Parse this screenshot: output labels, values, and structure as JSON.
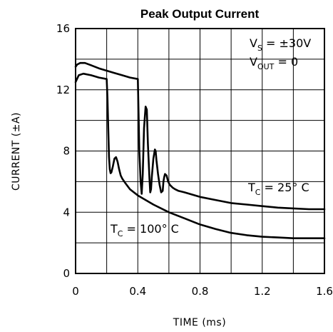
{
  "chart_data": {
    "type": "line",
    "title": "Peak Output Current",
    "xlabel": "TIME (ms)",
    "ylabel": "CURRENT (±A)",
    "xlim": [
      0,
      1.6
    ],
    "ylim": [
      0,
      16
    ],
    "x_ticks": [
      "0",
      "0.4",
      "0.8",
      "1.2",
      "1.6"
    ],
    "y_ticks": [
      "0",
      "4",
      "8",
      "12",
      "16"
    ],
    "grid": true,
    "annotations": {
      "vs": {
        "main": "V",
        "sub": "S",
        "rest": " = ±30V"
      },
      "vout": {
        "main": "V",
        "sub": "OUT",
        "rest": " = 0"
      },
      "tc25": {
        "main": "T",
        "sub": "C",
        "rest": " = 25° C"
      },
      "tc100": {
        "main": "T",
        "sub": "C",
        "rest": " = 100° C"
      }
    },
    "series": [
      {
        "x": [
          0,
          0.01,
          0.03,
          0.06,
          0.1,
          0.15,
          0.2,
          0.25,
          0.3,
          0.35,
          0.4,
          0.405,
          0.41,
          0.418,
          0.425,
          0.432,
          0.44,
          0.45,
          0.458,
          0.465,
          0.475,
          0.48,
          0.485,
          0.49,
          0.5,
          0.51,
          0.515,
          0.52,
          0.53,
          0.54,
          0.55,
          0.56,
          0.565,
          0.57,
          0.575,
          0.585,
          0.595,
          0.605,
          0.615,
          0.625,
          0.64,
          0.66,
          0.7,
          0.8,
          0.9,
          1.0,
          1.1,
          1.2,
          1.3,
          1.4,
          1.5,
          1.6
        ],
        "y": [
          13.5,
          13.65,
          13.75,
          13.75,
          13.6,
          13.4,
          13.25,
          13.1,
          12.95,
          12.8,
          12.7,
          10.5,
          8.0,
          6.0,
          5.2,
          6.5,
          9.5,
          10.9,
          10.7,
          8.5,
          6.2,
          5.3,
          5.5,
          6.3,
          7.5,
          8.1,
          8.0,
          7.4,
          6.5,
          5.8,
          5.3,
          5.4,
          6.0,
          6.3,
          6.5,
          6.4,
          6.0,
          5.8,
          5.7,
          5.6,
          5.5,
          5.4,
          5.3,
          5.0,
          4.8,
          4.6,
          4.5,
          4.4,
          4.3,
          4.25,
          4.2,
          4.2
        ]
      },
      {
        "x": [
          0,
          0.02,
          0.05,
          0.1,
          0.15,
          0.2,
          0.205,
          0.21,
          0.215,
          0.22,
          0.225,
          0.23,
          0.24,
          0.25,
          0.26,
          0.27,
          0.28,
          0.29,
          0.3,
          0.32,
          0.35,
          0.4,
          0.45,
          0.5,
          0.6,
          0.7,
          0.8,
          0.9,
          1.0,
          1.1,
          1.2,
          1.3,
          1.4,
          1.5,
          1.6
        ],
        "y": [
          12.5,
          12.95,
          13.05,
          12.95,
          12.8,
          12.7,
          11.5,
          9.5,
          7.6,
          6.8,
          6.55,
          6.6,
          7.0,
          7.5,
          7.6,
          7.3,
          6.8,
          6.4,
          6.2,
          5.9,
          5.5,
          5.1,
          4.8,
          4.5,
          4.0,
          3.6,
          3.2,
          2.9,
          2.65,
          2.5,
          2.4,
          2.35,
          2.3,
          2.3,
          2.3
        ]
      }
    ]
  }
}
